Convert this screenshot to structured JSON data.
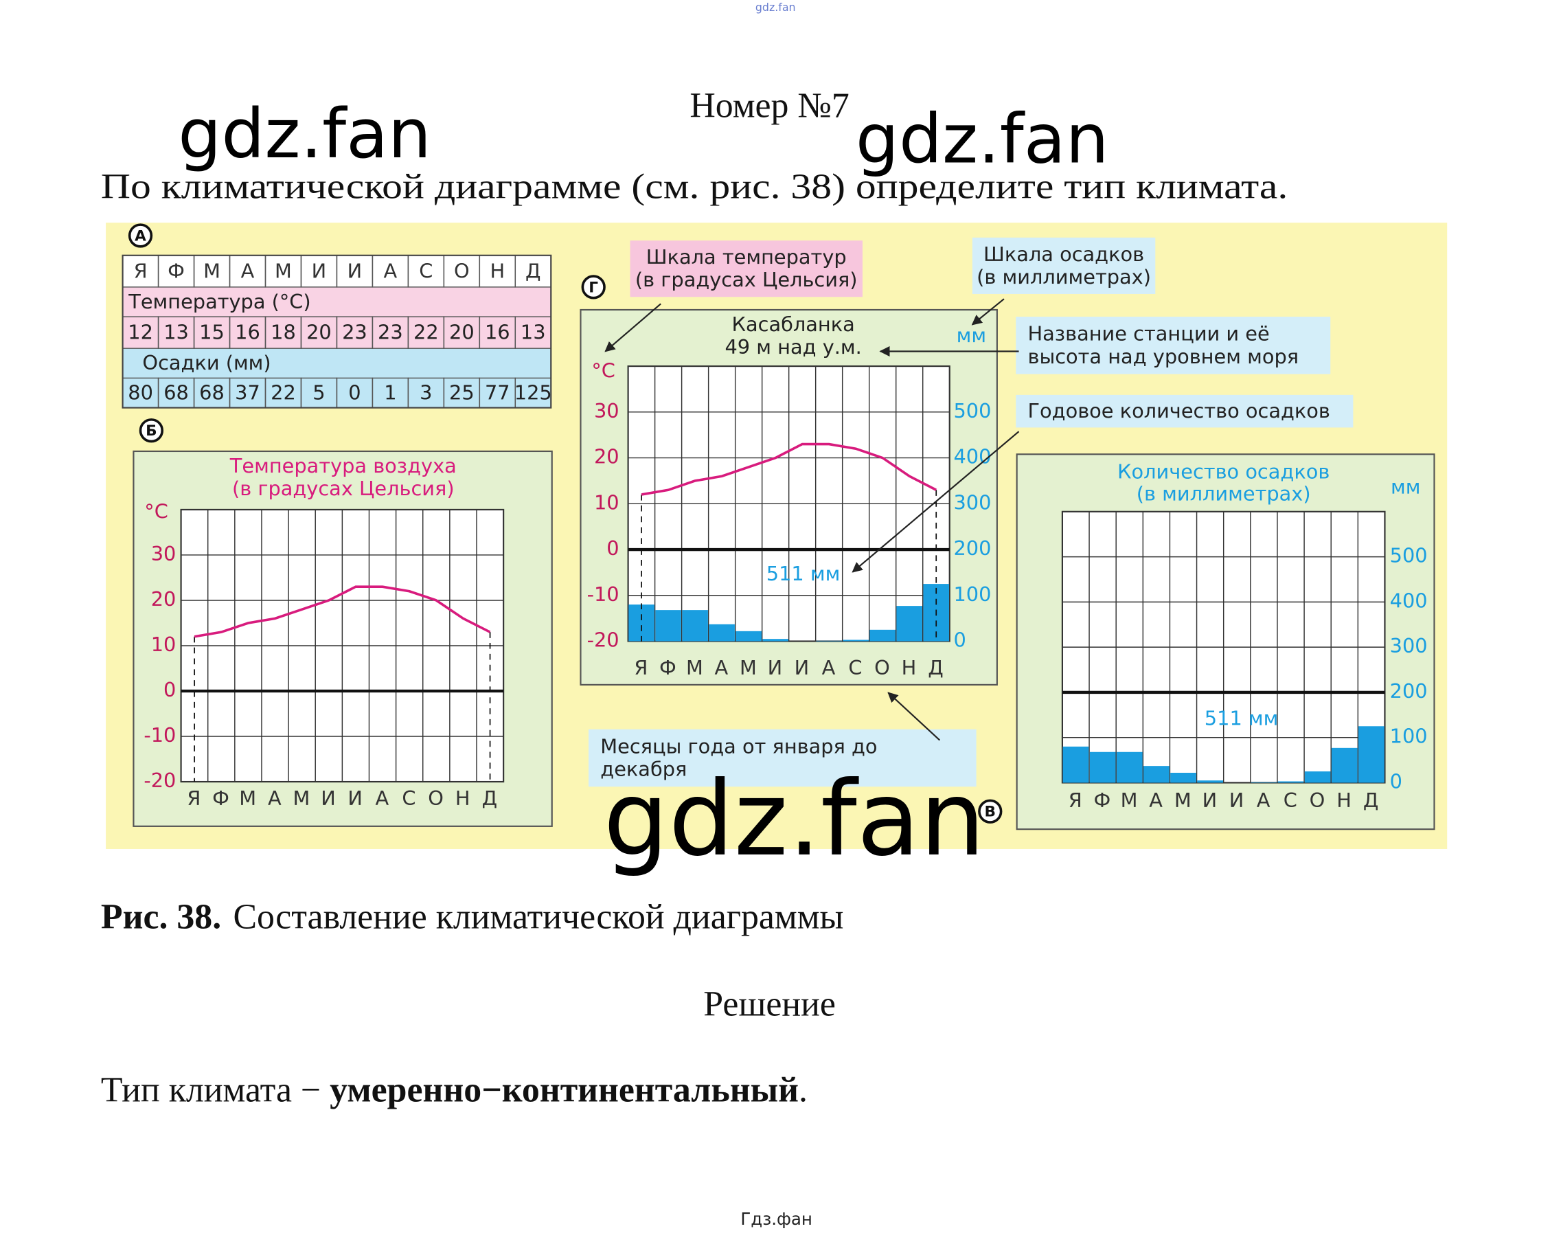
{
  "header": {
    "site": "gdz.fan",
    "title": "Номер №7"
  },
  "watermarks": [
    "gdz.fan",
    "gdz.fan",
    "gdz.fan"
  ],
  "task": "По климатической диаграмме (см. рис. 38) определите тип климата.",
  "figure": {
    "table": {
      "label": "А",
      "months": [
        "Я",
        "Ф",
        "М",
        "А",
        "М",
        "И",
        "И",
        "А",
        "С",
        "О",
        "Н",
        "Д"
      ],
      "temperature_label": "Температура (°С)",
      "temperature": [
        12,
        13,
        15,
        16,
        18,
        20,
        23,
        23,
        22,
        20,
        16,
        13
      ],
      "precipitation_label": "Осадки (мм)",
      "precipitation": [
        80,
        68,
        68,
        37,
        22,
        5,
        0,
        1,
        3,
        25,
        77,
        125
      ]
    },
    "panels": [
      {
        "type": "line",
        "label": "Б",
        "title": [
          "Температура воздуха",
          "(в градусах Цельсия)"
        ],
        "y_label": "°С",
        "months": [
          "Я",
          "Ф",
          "М",
          "А",
          "М",
          "И",
          "И",
          "А",
          "С",
          "О",
          "Н",
          "Д"
        ],
        "values": [
          12,
          13,
          15,
          16,
          18,
          20,
          23,
          23,
          22,
          20,
          16,
          13
        ],
        "color": "#d81b7d",
        "ylim": [
          -20,
          40
        ],
        "yticks": [
          -20,
          -10,
          0,
          10,
          20,
          30
        ],
        "baseline": 0
      },
      {
        "type": "combo",
        "label": "Г",
        "title": [
          "Касабланка",
          "49 м над у.м."
        ],
        "y_label": "°С",
        "y2_label": "мм",
        "months": [
          "Я",
          "Ф",
          "М",
          "А",
          "М",
          "И",
          "И",
          "А",
          "С",
          "О",
          "Н",
          "Д"
        ],
        "series": [
          {
            "values": [
              12,
              13,
              15,
              16,
              18,
              20,
              23,
              23,
              22,
              20,
              16,
              13
            ],
            "color": "#d81b7d"
          },
          {
            "values": [
              80,
              68,
              68,
              37,
              22,
              5,
              0,
              1,
              3,
              25,
              77,
              125
            ],
            "color": "#1a9ee0",
            "axis": "y2"
          }
        ],
        "ylim": [
          -20,
          40
        ],
        "yticks": [
          -20,
          -10,
          0,
          10,
          20,
          30
        ],
        "y2lim": [
          0,
          600
        ],
        "y2ticks": [
          0,
          100,
          200,
          300,
          400,
          500
        ],
        "baseline": 0,
        "annotation": "511 мм"
      },
      {
        "type": "bar",
        "label": "В",
        "title": [
          "Количество осадков",
          "(в миллиметрах)"
        ],
        "y2_label": "мм",
        "months": [
          "Я",
          "Ф",
          "М",
          "А",
          "М",
          "И",
          "И",
          "А",
          "С",
          "О",
          "Н",
          "Д"
        ],
        "values": [
          80,
          68,
          68,
          37,
          22,
          5,
          0,
          1,
          3,
          25,
          77,
          125
        ],
        "color": "#1a9ee0",
        "y2lim": [
          0,
          600
        ],
        "y2ticks": [
          0,
          100,
          200,
          300,
          400,
          500
        ],
        "baseline": 200,
        "annotation": "511 мм"
      }
    ],
    "callouts": [
      {
        "lines": [
          "Шкала температур",
          "(в градусах Цельсия)"
        ],
        "color": "#f7c6dd"
      },
      {
        "lines": [
          "Шкала осадков",
          "(в миллиметрах)"
        ],
        "color": "#d4eef9"
      },
      {
        "lines": [
          "Название станции и её",
          "высота  над уровнем моря"
        ],
        "color": "#d4eef9"
      },
      {
        "lines": [
          "Годовое  количество  осадков"
        ],
        "color": "#d4eef9"
      },
      {
        "lines": [
          "Месяцы года  от  января  до",
          "декабря"
        ],
        "color": "#d4eef9"
      }
    ]
  },
  "caption": {
    "number": "Рис. 38.",
    "text": "Составление климатической диаграммы"
  },
  "solution": {
    "title": "Решение",
    "text": "Тип климата − ",
    "answer": "умеренно−континентальный",
    "end": "."
  },
  "footer": "Гдз.фан"
}
